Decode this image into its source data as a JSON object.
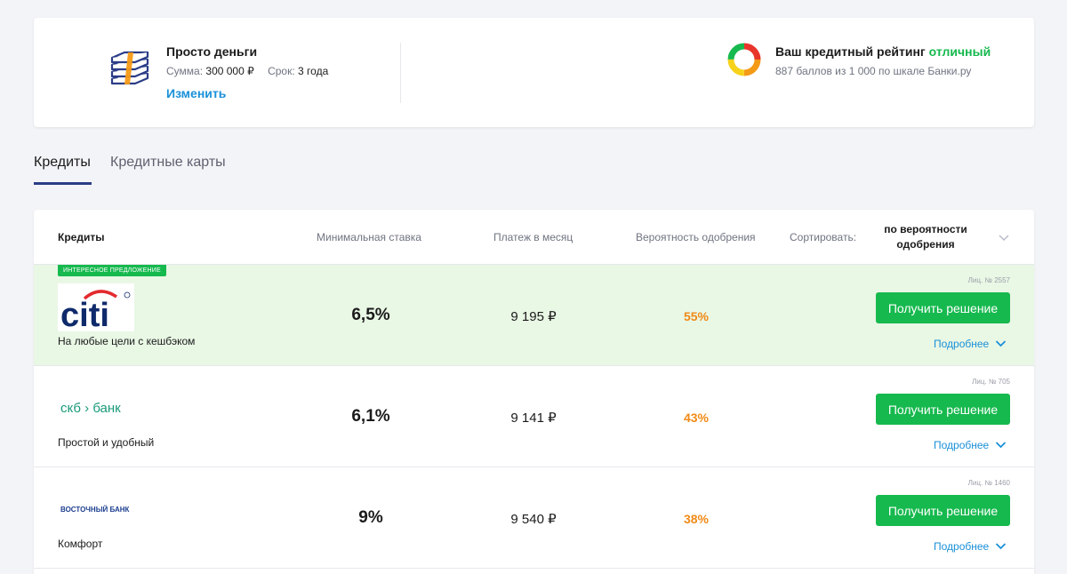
{
  "summary": {
    "product_title": "Просто деньги",
    "amount_label": "Сумма:",
    "amount_value": "300 000 ₽",
    "term_label": "Срок:",
    "term_value": "3 года",
    "change_link": "Изменить",
    "rating_title": "Ваш кредитный рейтинг",
    "rating_value": "отличный",
    "rating_sub": "887 баллов из 1 000 по шкале Банки.ру",
    "rating_colors": [
      "#e8352b",
      "#f59a16",
      "#f7d21a",
      "#16b94e"
    ]
  },
  "tabs": [
    {
      "label": "Кредиты",
      "active": true
    },
    {
      "label": "Кредитные карты",
      "active": false
    }
  ],
  "table": {
    "headers": {
      "credits": "Кредиты",
      "rate": "Минимальная ставка",
      "payment": "Платеж в месяц",
      "probability": "Вероятность одобрения",
      "sort_label": "Сортировать:",
      "sort_value": "по вероятности одобрения"
    },
    "rows": [
      {
        "badge": "ИНТЕРЕСНОЕ ПРЕДЛОЖЕНИЕ",
        "logo": "citi-logo",
        "logo_text": "citi",
        "description": "На любые цели с кешбэком",
        "rate": "6,5%",
        "payment": "9 195 ₽",
        "probability": "55%",
        "license": "Лиц. № 2557",
        "button": "Получить решение",
        "more": "Подробнее"
      },
      {
        "badge": "",
        "logo": "skb-bank-logo",
        "logo_text": "скб › банк",
        "description": "Простой и удобный",
        "rate": "6,1%",
        "payment": "9 141 ₽",
        "probability": "43%",
        "license": "Лиц. № 705",
        "button": "Получить решение",
        "more": "Подробнее"
      },
      {
        "badge": "",
        "logo": "vostochny-bank-logo",
        "logo_text": "ВОСТОЧНЫЙ БАНК",
        "description": "Комфорт",
        "rate": "9%",
        "payment": "9 540 ₽",
        "probability": "38%",
        "license": "Лиц. № 1460",
        "button": "Получить решение",
        "more": "Подробнее"
      }
    ]
  },
  "colors": {
    "accent_green": "#16b94e",
    "link_blue": "#1a90d8",
    "probability_orange": "#f08a16",
    "tab_underline": "#2a3d87",
    "highlight_row": "#e9f7e5"
  }
}
